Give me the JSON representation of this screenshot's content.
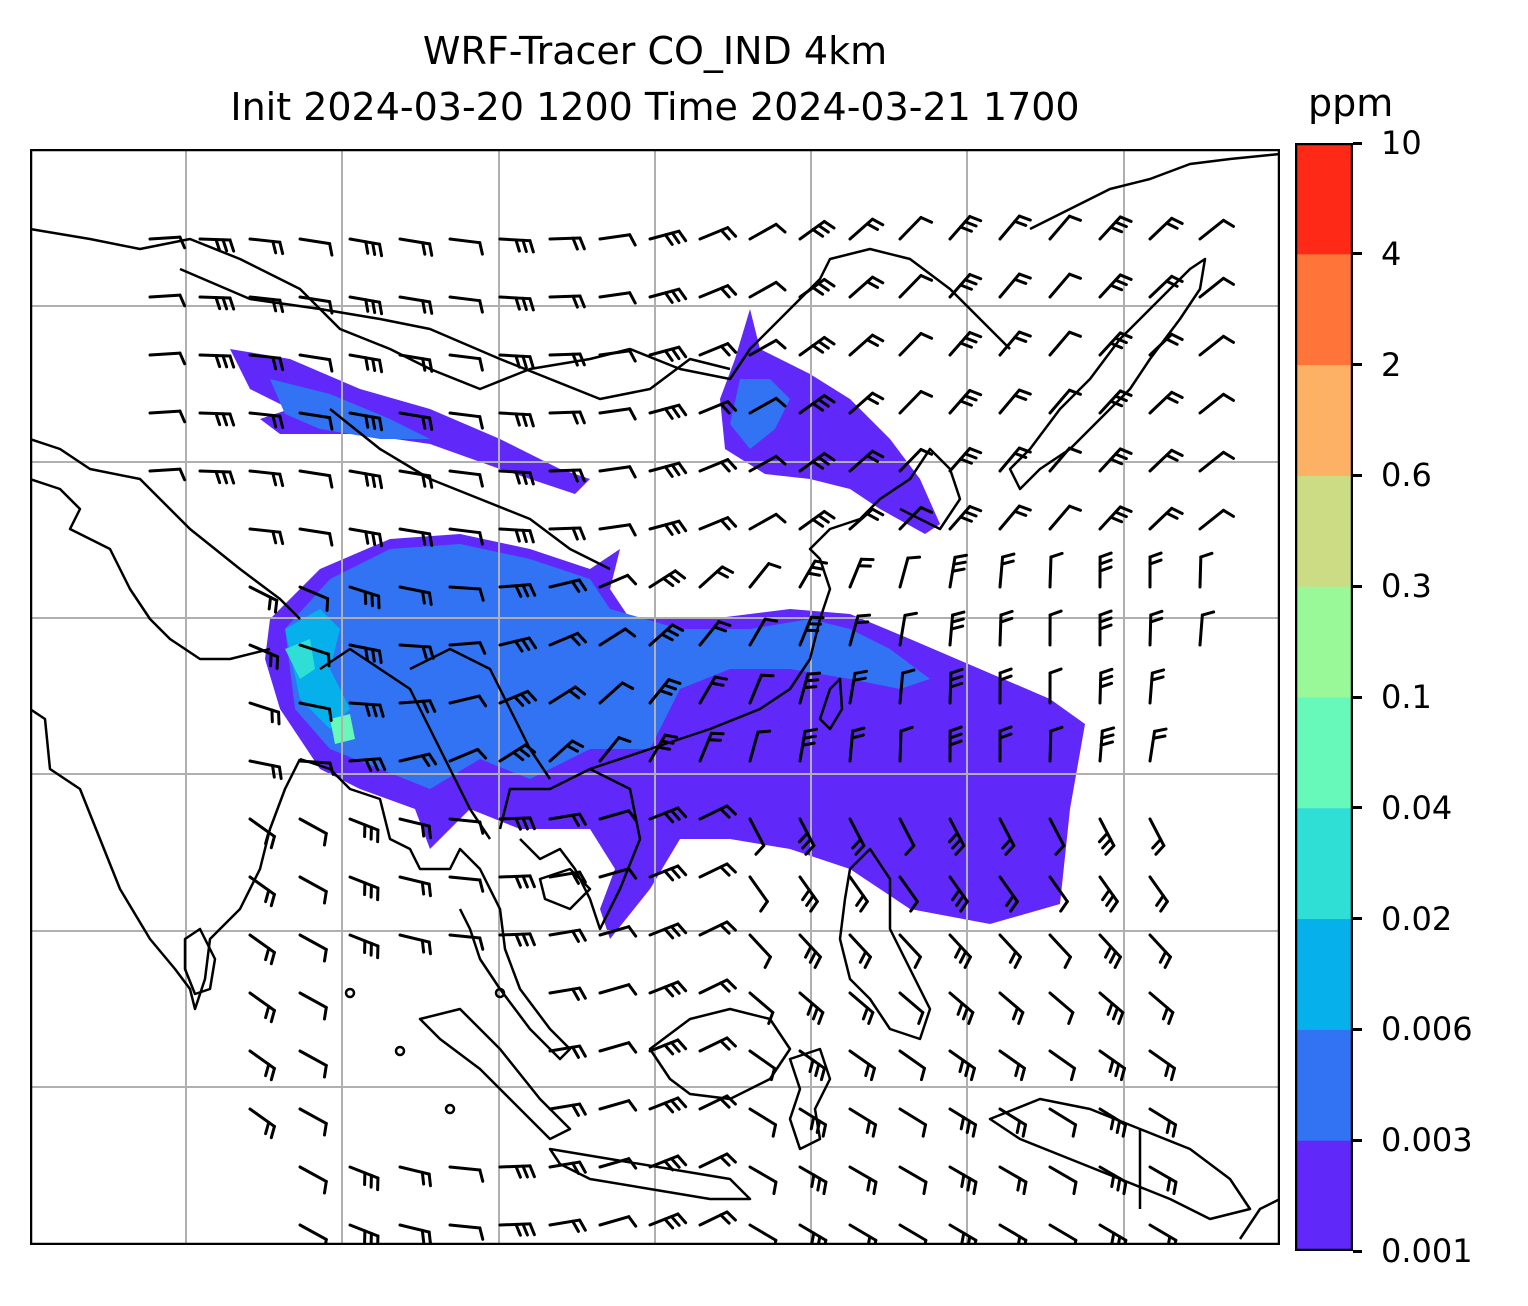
{
  "title": {
    "line1": "WRF-Tracer CO_IND 4km",
    "line2": "Init 2024-03-20 1200 Time 2024-03-21 1700"
  },
  "colorbar": {
    "unit": "ppm",
    "levels": [
      "0.001",
      "0.003",
      "0.006",
      "0.02",
      "0.04",
      "0.1",
      "0.3",
      "0.6",
      "2",
      "4",
      "10"
    ],
    "colors": [
      "#6128fa",
      "#3173f3",
      "#06b0ea",
      "#2fdfd6",
      "#66f9b9",
      "#99f898",
      "#cbdc84",
      "#fdb164",
      "#fe7439",
      "#fe2a17"
    ]
  },
  "map_style": {
    "frame": "#000000",
    "grid": "#b0b0b0",
    "coast": "#000000",
    "plume_colors": [
      "#6128fa",
      "#3173f3",
      "#06b0ea",
      "#2fdfd6",
      "#66f9b9"
    ]
  }
}
